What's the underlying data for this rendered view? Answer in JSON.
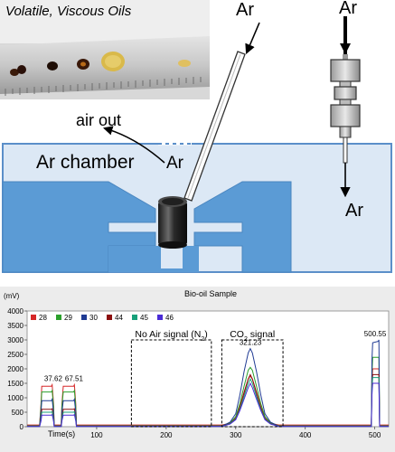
{
  "diagram": {
    "photo_title": "Volatile, Viscous Oils",
    "ar_label": "Ar",
    "air_out_label": "air out",
    "chamber_label": "Ar chamber"
  },
  "chart_data": {
    "type": "line",
    "title": "Bio-oil Sample",
    "ylabel": "(mV)",
    "xlabel": "Time(s)",
    "xlim": [
      0,
      520
    ],
    "ylim": [
      0,
      4000
    ],
    "x_ticks": [
      100,
      200,
      300,
      400,
      500
    ],
    "y_ticks": [
      0,
      500,
      1000,
      1500,
      2000,
      2500,
      3000,
      3500,
      4000
    ],
    "grid": false,
    "legend_position": "top-left",
    "series": [
      {
        "name": "28",
        "color": "#d62728",
        "x": [
          0,
          18,
          20,
          21,
          35,
          36,
          38,
          39,
          40,
          41,
          49,
          50,
          52,
          53,
          67,
          68,
          70,
          71,
          72,
          73,
          150,
          200,
          240,
          270,
          280,
          292,
          300,
          306,
          312,
          318,
          321,
          324,
          330,
          336,
          342,
          350,
          362,
          372,
          400,
          460,
          495,
          496,
          497,
          505,
          506,
          507,
          520
        ],
        "y": [
          60,
          60,
          800,
          1400,
          1400,
          1450,
          800,
          60,
          60,
          60,
          60,
          800,
          1400,
          1400,
          1400,
          1450,
          800,
          60,
          60,
          60,
          60,
          60,
          60,
          60,
          60,
          120,
          300,
          700,
          1200,
          1650,
          1750,
          1650,
          1200,
          700,
          300,
          120,
          60,
          60,
          60,
          60,
          60,
          1500,
          2000,
          2000,
          2000,
          60,
          60
        ]
      },
      {
        "name": "29",
        "color": "#2ca02c",
        "x": [
          0,
          18,
          20,
          21,
          35,
          36,
          38,
          39,
          40,
          41,
          49,
          50,
          52,
          53,
          67,
          68,
          70,
          71,
          72,
          73,
          150,
          200,
          240,
          270,
          280,
          292,
          300,
          306,
          312,
          318,
          321,
          324,
          330,
          336,
          342,
          350,
          362,
          372,
          400,
          460,
          495,
          496,
          497,
          505,
          506,
          507,
          520
        ],
        "y": [
          30,
          30,
          700,
          1200,
          1200,
          1250,
          700,
          30,
          30,
          30,
          30,
          700,
          1200,
          1200,
          1200,
          1250,
          700,
          30,
          30,
          30,
          30,
          30,
          30,
          30,
          30,
          130,
          350,
          800,
          1400,
          1950,
          2050,
          1950,
          1400,
          800,
          350,
          130,
          30,
          30,
          30,
          30,
          30,
          1800,
          2400,
          2400,
          2400,
          30,
          30
        ]
      },
      {
        "name": "30",
        "color": "#1f3a93",
        "x": [
          0,
          18,
          20,
          21,
          35,
          36,
          38,
          39,
          40,
          41,
          49,
          50,
          52,
          53,
          67,
          68,
          70,
          71,
          72,
          73,
          150,
          200,
          240,
          270,
          280,
          292,
          300,
          306,
          312,
          318,
          321,
          324,
          330,
          336,
          342,
          350,
          362,
          372,
          400,
          460,
          495,
          496,
          497,
          505,
          506,
          507,
          520
        ],
        "y": [
          20,
          20,
          500,
          900,
          900,
          950,
          500,
          20,
          20,
          20,
          20,
          500,
          900,
          900,
          900,
          950,
          500,
          20,
          20,
          20,
          20,
          20,
          20,
          20,
          20,
          160,
          450,
          1100,
          1900,
          2550,
          2700,
          2550,
          1900,
          1100,
          450,
          160,
          20,
          20,
          20,
          20,
          20,
          2300,
          2900,
          2950,
          3000,
          20,
          20
        ]
      },
      {
        "name": "44",
        "color": "#8c1010",
        "x": [
          0,
          18,
          20,
          21,
          35,
          36,
          38,
          39,
          40,
          41,
          49,
          50,
          52,
          53,
          67,
          68,
          70,
          71,
          72,
          73,
          150,
          200,
          240,
          270,
          280,
          292,
          300,
          306,
          312,
          318,
          321,
          324,
          330,
          336,
          342,
          350,
          362,
          372,
          400,
          460,
          495,
          496,
          497,
          505,
          506,
          507,
          520
        ],
        "y": [
          10,
          10,
          300,
          600,
          600,
          620,
          300,
          10,
          10,
          10,
          10,
          300,
          600,
          600,
          600,
          620,
          300,
          10,
          10,
          10,
          10,
          10,
          10,
          10,
          10,
          110,
          280,
          650,
          1150,
          1650,
          1800,
          1650,
          1150,
          650,
          280,
          110,
          10,
          10,
          10,
          10,
          10,
          1400,
          1800,
          1800,
          1800,
          10,
          10
        ]
      },
      {
        "name": "45",
        "color": "#17a07a",
        "x": [
          0,
          18,
          20,
          21,
          35,
          36,
          38,
          39,
          40,
          41,
          49,
          50,
          52,
          53,
          67,
          68,
          70,
          71,
          72,
          73,
          150,
          200,
          240,
          270,
          280,
          292,
          300,
          306,
          312,
          318,
          321,
          324,
          330,
          336,
          342,
          350,
          362,
          372,
          400,
          460,
          495,
          496,
          497,
          505,
          506,
          507,
          520
        ],
        "y": [
          10,
          10,
          250,
          500,
          500,
          520,
          250,
          10,
          10,
          10,
          10,
          250,
          500,
          500,
          500,
          520,
          250,
          10,
          10,
          10,
          10,
          10,
          10,
          10,
          10,
          100,
          260,
          600,
          1050,
          1500,
          1650,
          1500,
          1050,
          600,
          260,
          100,
          10,
          10,
          10,
          10,
          10,
          1300,
          1700,
          1700,
          1700,
          10,
          10
        ]
      },
      {
        "name": "46",
        "color": "#4a2bd6",
        "x": [
          0,
          18,
          20,
          21,
          35,
          36,
          38,
          39,
          40,
          41,
          49,
          50,
          52,
          53,
          67,
          68,
          70,
          71,
          72,
          73,
          150,
          200,
          240,
          270,
          280,
          292,
          300,
          306,
          312,
          318,
          321,
          324,
          330,
          336,
          342,
          350,
          362,
          372,
          400,
          460,
          495,
          496,
          497,
          505,
          506,
          507,
          520
        ],
        "y": [
          5,
          5,
          200,
          400,
          400,
          420,
          200,
          5,
          5,
          5,
          5,
          200,
          400,
          400,
          400,
          420,
          200,
          5,
          5,
          5,
          5,
          5,
          5,
          5,
          5,
          90,
          240,
          560,
          950,
          1350,
          1500,
          1350,
          950,
          560,
          240,
          90,
          5,
          5,
          5,
          5,
          5,
          1100,
          1500,
          1500,
          1500,
          5,
          5
        ]
      }
    ],
    "peak_labels": [
      {
        "text": "37.62",
        "x": 37.62,
        "y": 1450
      },
      {
        "text": "67.51",
        "x": 67.51,
        "y": 1450
      },
      {
        "text": "321.23",
        "x": 321.23,
        "y": 2700
      },
      {
        "text": "500.55",
        "x": 500.55,
        "y": 3000
      }
    ],
    "annotations": [
      {
        "text": "No Air signal (N",
        "subscript": "2",
        "suffix": ")",
        "x0": 150,
        "x1": 265,
        "y0": 0,
        "y1": 3000
      },
      {
        "text": "CO",
        "subscript": "2",
        "suffix": " signal",
        "x0": 280,
        "x1": 368,
        "y0": 0,
        "y1": 3000
      }
    ]
  }
}
